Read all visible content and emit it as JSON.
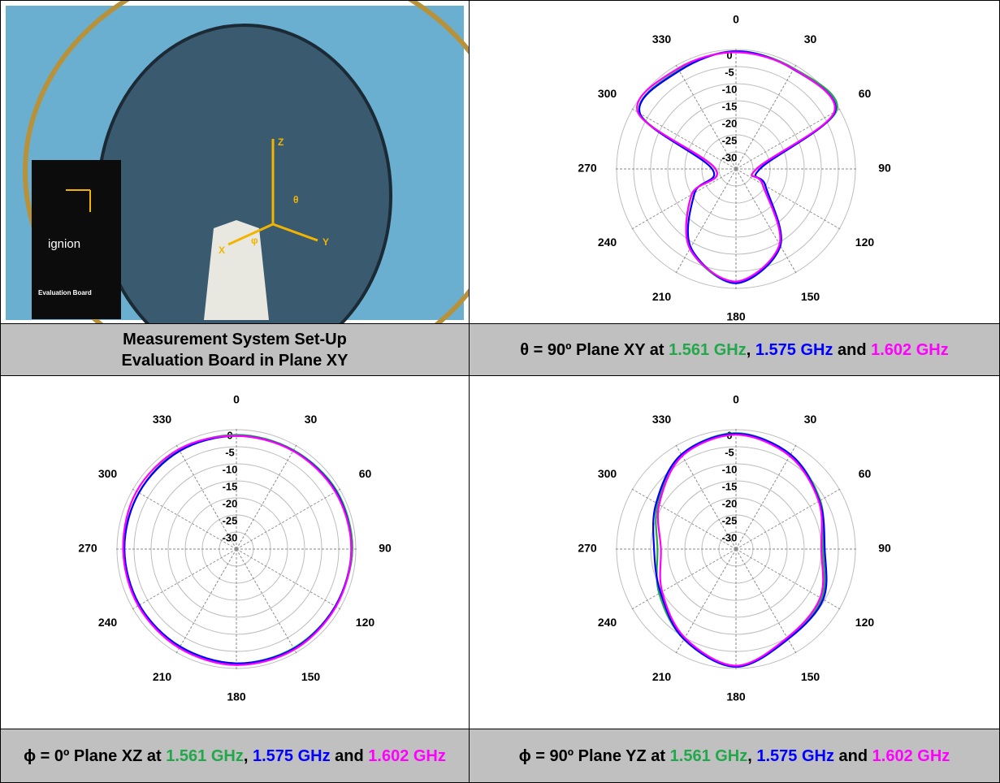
{
  "photo": {
    "texts": [
      "X",
      "Y",
      "Z",
      "θ",
      "φ",
      "ignion",
      "Evaluation Board"
    ]
  },
  "captions": [
    {
      "lines": [
        "Measurement System Set-Up",
        "Evaluation Board in Plane XY"
      ]
    },
    {
      "parts": [
        {
          "text": "θ = 90º Plane XY at "
        },
        {
          "text": "1.561 GHz",
          "color": "#22a84a"
        },
        {
          "text": ", "
        },
        {
          "text": "1.575 GHz",
          "color": "#0000ff"
        },
        {
          "text": " and "
        },
        {
          "text": "1.602 GHz",
          "color": "#ff00ff"
        }
      ]
    },
    {
      "parts": [
        {
          "text": "ϕ = 0º Plane XZ at "
        },
        {
          "text": "1.561 GHz",
          "color": "#22a84a"
        },
        {
          "text": ", "
        },
        {
          "text": "1.575 GHz",
          "color": "#0000ff"
        },
        {
          "text": " and "
        },
        {
          "text": "1.602 GHz",
          "color": "#ff00ff"
        }
      ]
    },
    {
      "parts": [
        {
          "text": "ϕ = 90º Plane YZ at "
        },
        {
          "text": "1.561 GHz",
          "color": "#22a84a"
        },
        {
          "text": ", "
        },
        {
          "text": "1.575 GHz",
          "color": "#0000ff"
        },
        {
          "text": " and "
        },
        {
          "text": "1.602 GHz",
          "color": "#ff00ff"
        }
      ]
    }
  ],
  "chart_data": [
    {
      "type": "polar",
      "x": [
        0,
        30,
        60,
        90,
        120,
        150,
        180,
        210,
        240,
        270,
        300,
        330
      ],
      "xticks": [
        0,
        30,
        60,
        90,
        120,
        150,
        180,
        210,
        240,
        270,
        300,
        330
      ],
      "ylim": [
        -35,
        0
      ],
      "yticks": [
        0,
        -5,
        -10,
        -15,
        -20,
        -25,
        -30
      ],
      "grid": true,
      "series": [
        {
          "name": "1.561 GHz",
          "color": "#22a84a",
          "values": [
            -0.5,
            -1,
            -1,
            -29,
            -26,
            -9,
            -1.5,
            -8,
            -20,
            -29,
            -2.5,
            -1.5
          ]
        },
        {
          "name": "1.575 GHz",
          "color": "#0000ff",
          "values": [
            -0.5,
            -1.3,
            -1.5,
            -28,
            -25,
            -9,
            -1.5,
            -8.5,
            -21,
            -28,
            -2.5,
            -1.8
          ]
        },
        {
          "name": "1.602 GHz",
          "color": "#ff00ff",
          "values": [
            -0.8,
            -1.2,
            -1.8,
            -29,
            -26,
            -9.5,
            -2,
            -8,
            -20,
            -29,
            -1.8,
            -1
          ]
        }
      ]
    },
    {
      "type": "polar",
      "x": [
        0,
        30,
        60,
        90,
        120,
        150,
        180,
        210,
        240,
        270,
        300,
        330
      ],
      "xticks": [
        0,
        30,
        60,
        90,
        120,
        150,
        180,
        210,
        240,
        270,
        300,
        330
      ],
      "ylim": [
        -35,
        0
      ],
      "yticks": [
        0,
        -5,
        -10,
        -15,
        -20,
        -25,
        -30
      ],
      "grid": true,
      "series": [
        {
          "name": "1.561 GHz",
          "color": "#22a84a",
          "values": [
            -1.5,
            -1.5,
            -1,
            -1,
            -1.5,
            -1.5,
            -1.5,
            -2,
            -2,
            -2,
            -2,
            -1.5
          ]
        },
        {
          "name": "1.575 GHz",
          "color": "#0000ff",
          "values": [
            -1.8,
            -1.7,
            -1.3,
            -1.3,
            -1.5,
            -1.3,
            -1.5,
            -2,
            -2.2,
            -2.2,
            -2,
            -1.8
          ]
        },
        {
          "name": "1.602 GHz",
          "color": "#ff00ff",
          "values": [
            -1.8,
            -1.8,
            -1.5,
            -1.3,
            -1.3,
            -1,
            -1,
            -1.5,
            -1.8,
            -1.8,
            -1.2,
            -1.2
          ]
        }
      ]
    },
    {
      "type": "polar",
      "x": [
        0,
        30,
        60,
        90,
        120,
        150,
        180,
        210,
        240,
        270,
        300,
        330
      ],
      "xticks": [
        0,
        30,
        60,
        90,
        120,
        150,
        180,
        210,
        240,
        270,
        300,
        330
      ],
      "ylim": [
        -35,
        0
      ],
      "yticks": [
        0,
        -5,
        -10,
        -15,
        -20,
        -25,
        -30
      ],
      "grid": true,
      "series": [
        {
          "name": "1.561 GHz",
          "color": "#22a84a",
          "values": [
            -1,
            -3,
            -6.5,
            -9.5,
            -6,
            -4.5,
            -0.5,
            -4.5,
            -9,
            -12,
            -8.5,
            -3
          ]
        },
        {
          "name": "1.575 GHz",
          "color": "#0000ff",
          "values": [
            -1.2,
            -3,
            -6.8,
            -9,
            -5.5,
            -4.5,
            -0.5,
            -4.5,
            -9.5,
            -11,
            -8,
            -3
          ]
        },
        {
          "name": "1.602 GHz",
          "color": "#ff00ff",
          "values": [
            -1.5,
            -3.5,
            -7,
            -10,
            -6.5,
            -5,
            -0.8,
            -5,
            -10,
            -13,
            -9,
            -3.5
          ]
        }
      ]
    }
  ]
}
